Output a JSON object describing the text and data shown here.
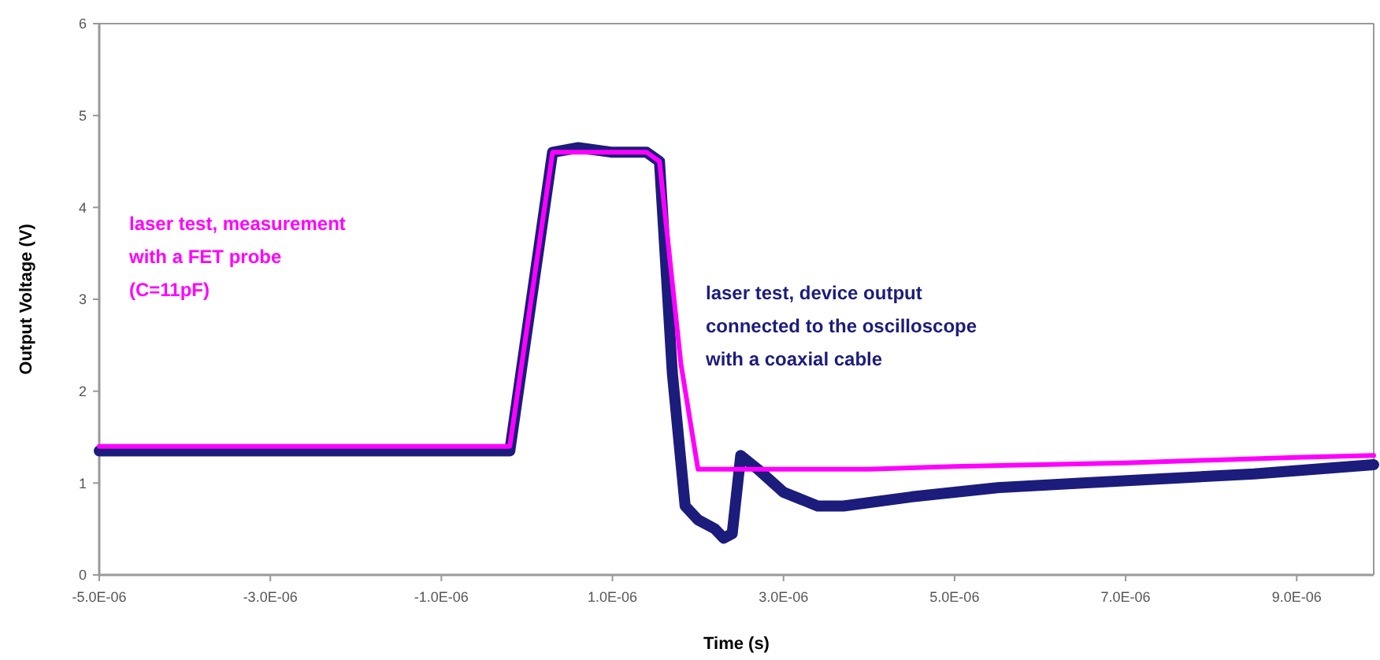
{
  "chart_data": {
    "type": "line",
    "xlabel": "Time (s)",
    "ylabel": "Output Voltage (V)",
    "xlim": [
      -5e-06,
      9.9e-06
    ],
    "xticks": [
      {
        "value": -5e-06,
        "label": "-5.0E-06"
      },
      {
        "value": -3e-06,
        "label": "-3.0E-06"
      },
      {
        "value": -1e-06,
        "label": "-1.0E-06"
      },
      {
        "value": 1e-06,
        "label": "1.0E-06"
      },
      {
        "value": 3e-06,
        "label": "3.0E-06"
      },
      {
        "value": 5e-06,
        "label": "5.0E-06"
      },
      {
        "value": 7e-06,
        "label": "7.0E-06"
      },
      {
        "value": 9e-06,
        "label": "9.0E-06"
      }
    ],
    "ylim": [
      0,
      6
    ],
    "yticks": [
      0,
      1,
      2,
      3,
      4,
      5,
      6
    ],
    "grid": false,
    "line_style": "solid",
    "series": [
      {
        "color": "#1c1c7c",
        "x": [
          -5e-06,
          -4e-06,
          -3e-06,
          -2e-06,
          -1e-06,
          -3e-07,
          -2e-07,
          3e-07,
          6e-07,
          1e-06,
          1.4e-06,
          1.55e-06,
          1.7e-06,
          1.85e-06,
          2e-06,
          2.2e-06,
          2.3e-06,
          2.4e-06,
          2.5e-06,
          2.7e-06,
          3e-06,
          3.4e-06,
          3.7e-06,
          4.5e-06,
          5.5e-06,
          6.5e-06,
          7.5e-06,
          8.5e-06,
          9.9e-06
        ],
        "values": [
          1.35,
          1.35,
          1.35,
          1.35,
          1.35,
          1.35,
          1.35,
          4.6,
          4.65,
          4.6,
          4.6,
          4.5,
          2.2,
          0.75,
          0.6,
          0.5,
          0.4,
          0.45,
          1.3,
          1.15,
          0.9,
          0.75,
          0.75,
          0.85,
          0.95,
          1.0,
          1.05,
          1.1,
          1.2
        ]
      },
      {
        "color": "#ff00ff",
        "x": [
          -5e-06,
          -4e-06,
          -3e-06,
          -2e-06,
          -1e-06,
          -3e-07,
          -2e-07,
          3e-07,
          6e-07,
          1e-06,
          1.4e-06,
          1.55e-06,
          1.8e-06,
          2e-06,
          2.5e-06,
          3e-06,
          4e-06,
          5e-06,
          6e-06,
          7e-06,
          8e-06,
          9e-06,
          9.9e-06
        ],
        "values": [
          1.4,
          1.4,
          1.4,
          1.4,
          1.4,
          1.4,
          1.4,
          4.6,
          4.6,
          4.6,
          4.6,
          4.5,
          2.3,
          1.15,
          1.15,
          1.15,
          1.15,
          1.18,
          1.2,
          1.22,
          1.25,
          1.28,
          1.3
        ]
      }
    ],
    "annotations": [
      "laser test, device output\nconnected to the oscilloscope\nwith a coaxial cable",
      "laser test, measurement\nwith a FET probe\n(C=11pF)"
    ]
  }
}
